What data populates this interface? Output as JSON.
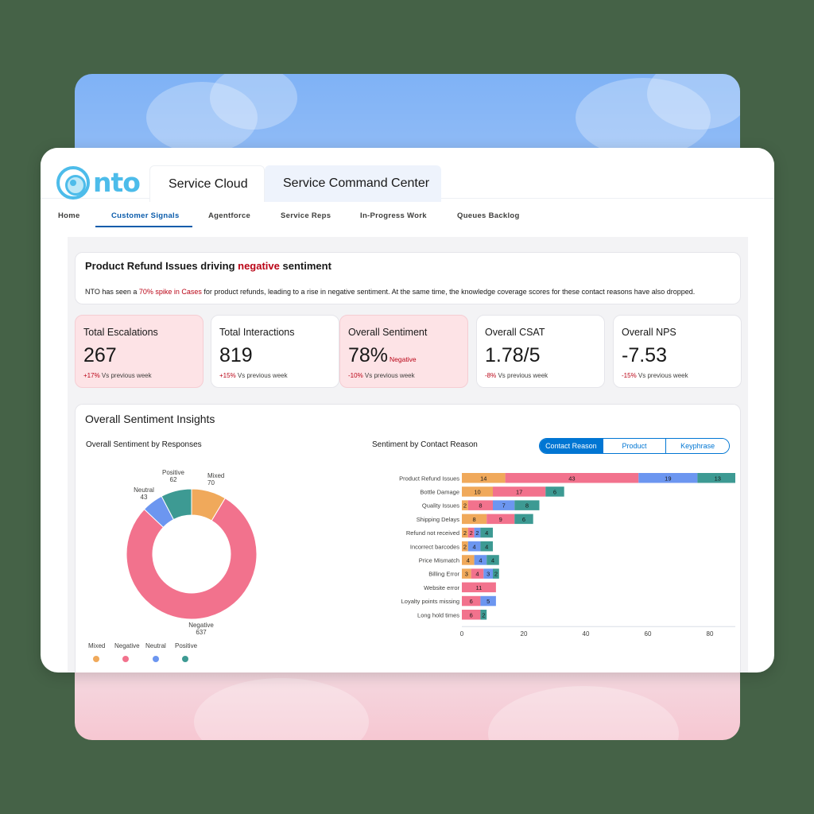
{
  "logo_text": "nto",
  "app_tabs": [
    "Service Cloud",
    "Service Command Center"
  ],
  "nav": [
    "Home",
    "Customer Signals",
    "Agentforce",
    "Service Reps",
    "In-Progress Work",
    "Queues Backlog"
  ],
  "banner": {
    "title_prefix": "Product Refund Issues driving ",
    "title_highlight": "negative",
    "title_suffix": " sentiment",
    "text_prefix": "NTO has seen a ",
    "text_highlight": "70% spike in Cases",
    "text_suffix": " for product refunds, leading to a rise in negative sentiment. At the same time, the knowledge coverage scores for these contact reasons have also dropped."
  },
  "kpis": [
    {
      "label": "Total Escalations",
      "value": "267",
      "badge": "",
      "delta": "+17%",
      "delta_suffix": " Vs previous week"
    },
    {
      "label": "Total Interactions",
      "value": "819",
      "badge": "",
      "delta": "+15%",
      "delta_suffix": " Vs previous week"
    },
    {
      "label": "Overall Sentiment",
      "value": "78%",
      "badge": "Negative",
      "delta": "-10%",
      "delta_suffix": " Vs previous week"
    },
    {
      "label": "Overall CSAT",
      "value": "1.78/5",
      "badge": "",
      "delta": "-8%",
      "delta_suffix": " Vs previous week"
    },
    {
      "label": "Overall NPS",
      "value": "-7.53",
      "badge": "",
      "delta": "-15%",
      "delta_suffix": " Vs previous week"
    }
  ],
  "insights_title": "Overall Sentiment Insights",
  "segmented": [
    "Contact Reason",
    "Product",
    "Keyphrase"
  ],
  "colors": {
    "Mixed": "#f0a95b",
    "Negative": "#f2728d",
    "Neutral": "#6c96f0",
    "Positive": "#3d9a93"
  },
  "chart_data": [
    {
      "type": "pie",
      "title": "Overall Sentiment by Responses",
      "slices": [
        {
          "name": "Mixed",
          "value": 70
        },
        {
          "name": "Negative",
          "value": 637
        },
        {
          "name": "Neutral",
          "value": 43
        },
        {
          "name": "Positive",
          "value": 62
        }
      ],
      "legend": "bottom"
    },
    {
      "type": "bar",
      "orientation": "horizontal",
      "stacked": true,
      "title": "Sentiment by Contact Reason",
      "categories": [
        "Product Refund Issues",
        "Bottle Damage",
        "Quality Issues",
        "Shipping Delays",
        "Refund not received",
        "Incorrect barcodes",
        "Price Mismatch",
        "Billing Error",
        "Website error",
        "Loyalty points missing",
        "Long hold times"
      ],
      "series": [
        {
          "name": "Mixed",
          "values": [
            14,
            10,
            2,
            8,
            2,
            2,
            4,
            3,
            0,
            0,
            0
          ]
        },
        {
          "name": "Negative",
          "values": [
            43,
            17,
            8,
            9,
            2,
            0,
            0,
            4,
            11,
            6,
            6
          ]
        },
        {
          "name": "Neutral",
          "values": [
            19,
            0,
            7,
            0,
            2,
            4,
            4,
            3,
            0,
            5,
            0
          ]
        },
        {
          "name": "Positive",
          "values": [
            13,
            6,
            8,
            6,
            4,
            4,
            4,
            2,
            0,
            0,
            2
          ]
        }
      ],
      "xticks": [
        0,
        20,
        40,
        60,
        80
      ],
      "xlim": [
        0,
        92
      ],
      "grid": false
    }
  ]
}
